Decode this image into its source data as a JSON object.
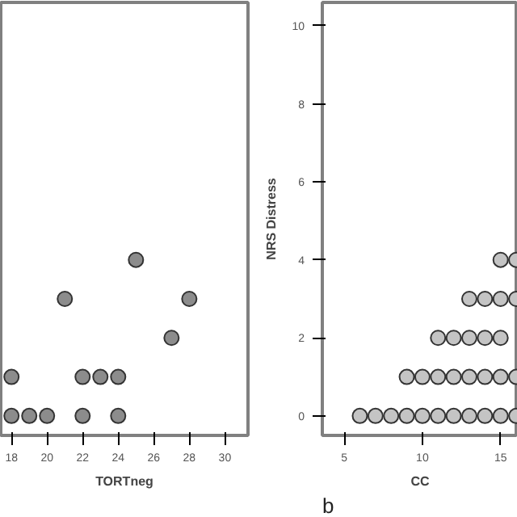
{
  "chart_data": [
    {
      "type": "scatter",
      "xlabel": "TORTneg",
      "xlim": [
        17.4,
        31.3
      ],
      "xticks": [
        18,
        20,
        22,
        24,
        26,
        28,
        30
      ],
      "ylim": [
        -0.5,
        10.6
      ],
      "tick_labels": "x",
      "grid": false,
      "marker": "circle",
      "series": [
        {
          "color": "#8c8c8c",
          "x": [
            18,
            19,
            20,
            22,
            24,
            18,
            22,
            23,
            24,
            27,
            21,
            28,
            25
          ],
          "values": [
            0,
            0,
            0,
            0,
            0,
            1,
            1,
            1,
            1,
            2,
            3,
            3,
            4
          ]
        }
      ]
    },
    {
      "type": "scatter",
      "xlabel": "CC",
      "ylabel": "NRS Distress",
      "xlim": [
        3.6,
        16.1
      ],
      "xticks": [
        5,
        10,
        15
      ],
      "ylim": [
        -0.5,
        10.6
      ],
      "yticks": [
        0,
        2,
        4,
        6,
        8,
        10
      ],
      "grid": false,
      "marker": "circle",
      "annotations": [
        "b"
      ],
      "series": [
        {
          "color": "#c4c4c4",
          "x": [
            6,
            7,
            8,
            9,
            10,
            11,
            12,
            13,
            14,
            15,
            16,
            9,
            10,
            11,
            12,
            13,
            14,
            15,
            16,
            11,
            12,
            13,
            14,
            15,
            13,
            14,
            15,
            16,
            15,
            16
          ],
          "values": [
            0,
            0,
            0,
            0,
            0,
            0,
            0,
            0,
            0,
            0,
            0,
            1,
            1,
            1,
            1,
            1,
            1,
            1,
            1,
            2,
            2,
            2,
            2,
            2,
            3,
            3,
            3,
            3,
            4,
            4
          ]
        }
      ]
    }
  ]
}
